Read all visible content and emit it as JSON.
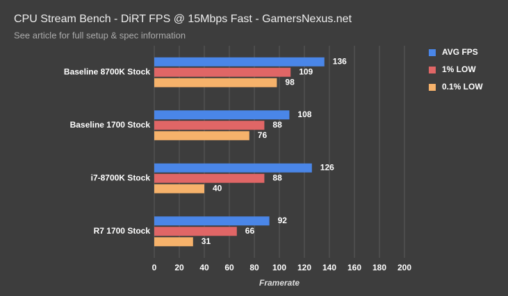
{
  "chart_data": {
    "type": "hbar",
    "title": "CPU Stream Bench - DiRT FPS @ 15Mbps Fast  - GamersNexus.net",
    "subtitle": "See article for full setup & spec information",
    "x_label": "Framerate",
    "categories": [
      "Baseline 8700K Stock",
      "Baseline 1700 Stock",
      "i7-8700K Stock",
      "R7 1700 Stock"
    ],
    "series": [
      {
        "name": "AVG FPS",
        "color": "#4a86e8",
        "values": [
          136,
          108,
          126,
          92
        ]
      },
      {
        "name": "1% LOW",
        "color": "#e06666",
        "values": [
          109,
          88,
          88,
          66
        ]
      },
      {
        "name": "0.1% LOW",
        "color": "#f6b26b",
        "values": [
          98,
          76,
          40,
          31
        ]
      }
    ],
    "xlim": [
      0,
      200
    ],
    "xticks": [
      0,
      20,
      40,
      60,
      80,
      100,
      120,
      140,
      160,
      180,
      200
    ],
    "grid": true,
    "legend": "right"
  }
}
